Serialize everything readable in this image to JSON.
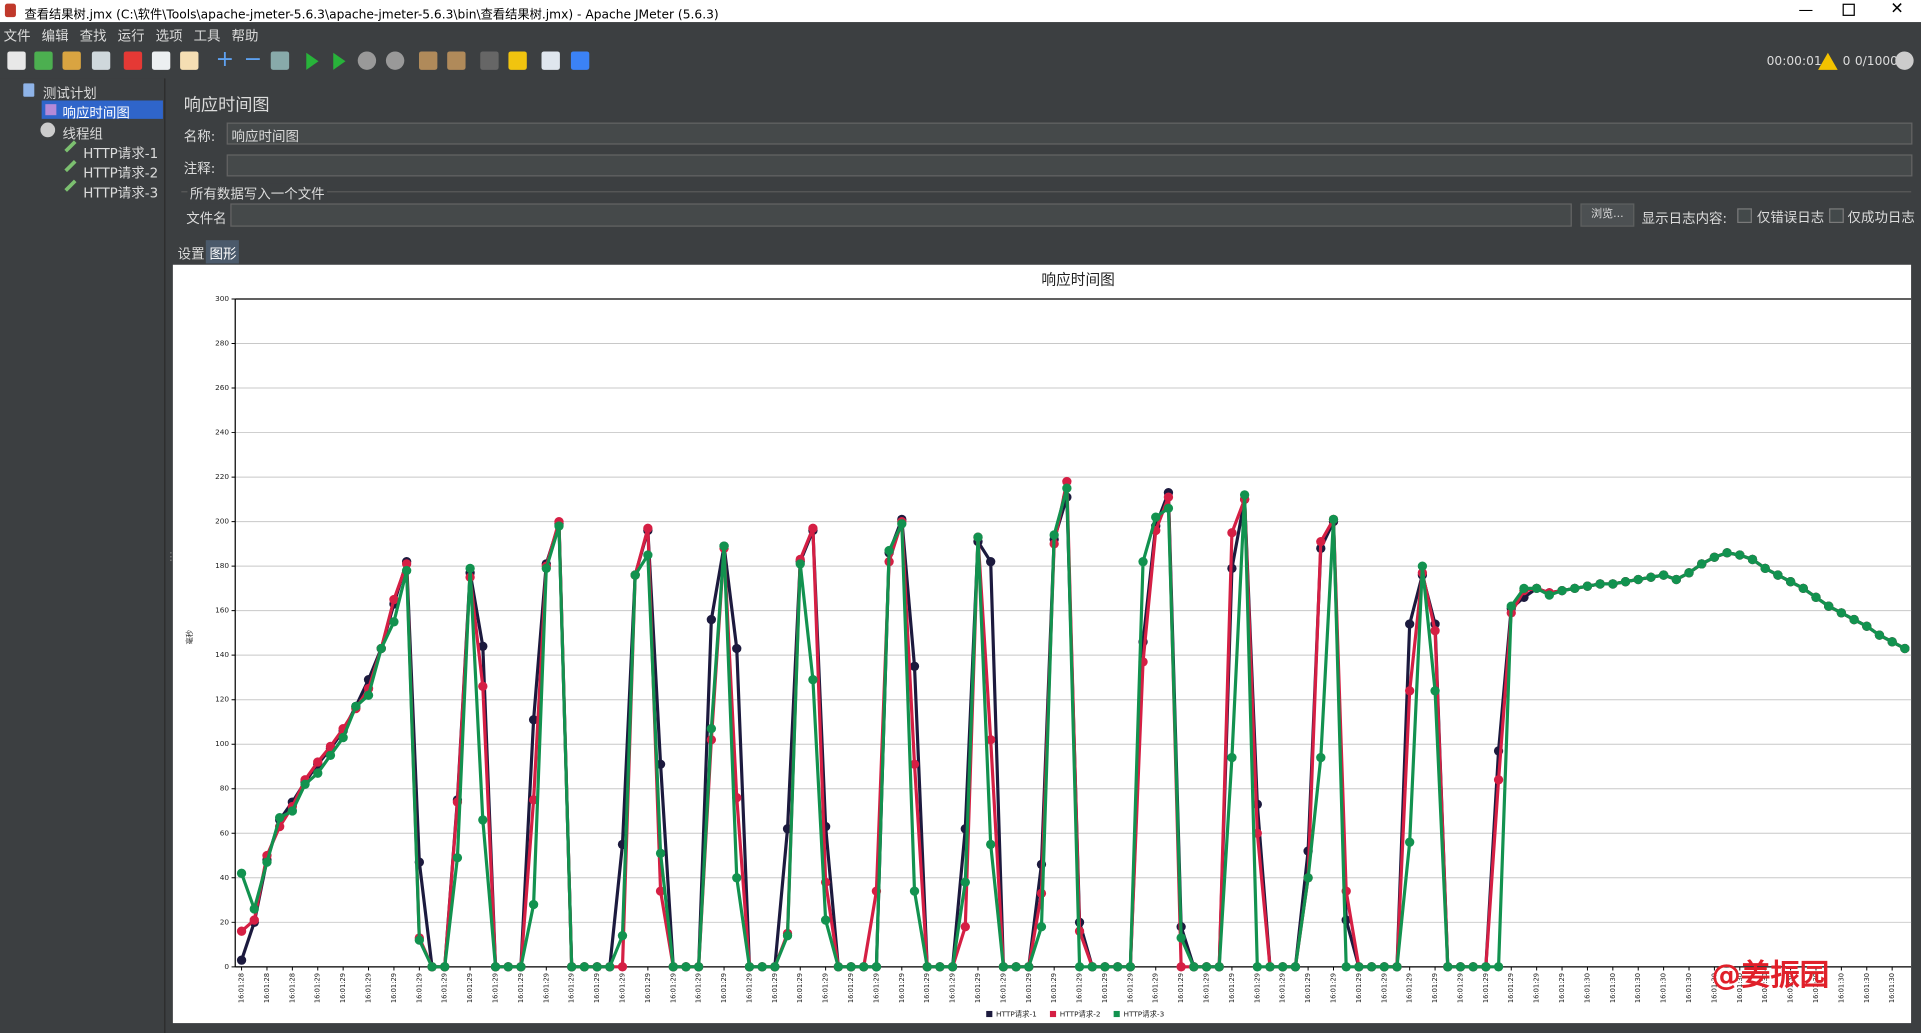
{
  "window": {
    "title": "查看结果树.jmx (C:\\软件\\Tools\\apache-jmeter-5.6.3\\apache-jmeter-5.6.3\\bin\\查看结果树.jmx) - Apache JMeter (5.6.3)",
    "menu": [
      "文件",
      "编辑",
      "查找",
      "运行",
      "选项",
      "工具",
      "帮助"
    ],
    "status": {
      "time": "00:00:01",
      "warnings": 0,
      "threads": "0/1000"
    }
  },
  "tree": {
    "items": [
      "测试计划",
      "响应时间图",
      "线程组",
      "HTTP请求-1",
      "HTTP请求-2",
      "HTTP请求-3"
    ]
  },
  "panel": {
    "title": "响应时间图",
    "name_label": "名称:",
    "name_value": "响应时间图",
    "comment_label": "注释:",
    "file_section": "所有数据写入一个文件",
    "file_label": "文件名",
    "browse": "浏览...",
    "log_label": "显示日志内容:",
    "errors_only": "仅错误日志",
    "success_only": "仅成功日志",
    "tabs": [
      "设置",
      "图形"
    ]
  },
  "chart_data": {
    "type": "line",
    "title": "响应时间图",
    "y_label": "毫秒",
    "categories": [
      "16:01:28",
      null,
      "16:01:28",
      null,
      "16:01:28",
      null,
      "16:01:29",
      null,
      "16:01:29",
      null,
      "16:01:29",
      null,
      "16:01:29",
      null,
      "16:01:29",
      null,
      "16:01:29",
      null,
      "16:01:29",
      null,
      "16:01:29",
      null,
      "16:01:29",
      null,
      "16:01:29",
      null,
      "16:01:29",
      null,
      "16:01:29",
      null,
      "16:01:29",
      null,
      "16:01:29",
      null,
      "16:01:29",
      null,
      "16:01:29",
      null,
      "16:01:29",
      null,
      "16:01:29",
      null,
      "16:01:29",
      null,
      "16:01:29",
      null,
      "16:01:29",
      null,
      "16:01:29",
      null,
      "16:01:29",
      null,
      "16:01:29",
      null,
      "16:01:29",
      null,
      "16:01:29",
      null,
      "16:01:29",
      null,
      "16:01:29",
      null,
      "16:01:29",
      null,
      "16:01:29",
      null,
      "16:01:29",
      null,
      "16:01:29",
      null,
      "16:01:29",
      null,
      "16:01:29",
      null,
      "16:01:29",
      null,
      "16:01:29",
      null,
      "16:01:29",
      null,
      "16:01:29",
      null,
      "16:01:29",
      null,
      "16:01:29",
      null,
      "16:01:29",
      null,
      "16:01:29",
      null,
      "16:01:29",
      null,
      "16:01:29",
      null,
      "16:01:29",
      null,
      "16:01:29",
      null,
      "16:01:29",
      null,
      "16:01:29",
      null,
      "16:01:29",
      null,
      "16:01:29",
      null,
      "16:01:30",
      null,
      "16:01:30",
      null,
      "16:01:30",
      null,
      "16:01:30",
      null,
      "16:01:30",
      null,
      "16:01:30",
      null,
      "16:01:30",
      null,
      "16:01:30",
      null,
      "16:01:30",
      null,
      "16:01:30",
      null,
      "16:01:30",
      null,
      "16:01:30",
      null,
      "16:01:30",
      null
    ],
    "series": [
      {
        "name": "HTTP请求-1",
        "color": "#1c1a3e",
        "values": [
          3,
          20,
          48,
          66,
          74,
          83,
          91,
          98,
          106,
          117,
          129,
          143,
          163,
          182,
          47,
          0,
          0,
          75,
          177,
          144,
          0,
          0,
          0,
          111,
          181,
          199,
          0,
          0,
          0,
          0,
          55,
          176,
          196,
          91,
          0,
          0,
          0,
          156,
          189,
          143,
          0,
          0,
          0,
          62,
          182,
          196,
          63,
          0,
          0,
          0,
          0,
          186,
          201,
          135,
          0,
          0,
          0,
          62,
          191,
          182,
          0,
          0,
          0,
          46,
          192,
          211,
          20,
          0,
          0,
          0,
          0,
          146,
          198,
          213,
          18,
          0,
          0,
          0,
          179,
          210,
          73,
          0,
          0,
          0,
          52,
          188,
          200,
          21,
          0,
          0,
          0,
          0,
          154,
          176,
          154,
          0,
          0,
          0,
          0,
          97,
          161,
          166,
          170,
          168,
          169,
          170,
          171,
          172,
          172,
          173,
          174,
          175,
          176,
          174,
          177,
          181,
          184,
          186,
          185,
          183,
          179,
          176,
          173,
          170,
          166,
          162,
          159,
          156,
          153,
          149,
          146,
          143
        ]
      },
      {
        "name": "HTTP请求-2",
        "color": "#d51f44",
        "values": [
          16,
          21,
          50,
          63,
          72,
          84,
          92,
          99,
          107,
          116,
          125,
          143,
          165,
          181,
          13,
          0,
          0,
          74,
          175,
          126,
          0,
          0,
          0,
          75,
          180,
          200,
          0,
          0,
          0,
          0,
          0,
          176,
          197,
          34,
          0,
          0,
          0,
          102,
          188,
          76,
          0,
          0,
          0,
          15,
          183,
          197,
          38,
          0,
          0,
          0,
          34,
          182,
          200,
          91,
          0,
          0,
          0,
          18,
          193,
          102,
          0,
          0,
          0,
          33,
          190,
          218,
          16,
          0,
          0,
          0,
          0,
          137,
          196,
          211,
          0,
          0,
          0,
          0,
          195,
          210,
          60,
          0,
          0,
          0,
          40,
          191,
          201,
          34,
          0,
          0,
          0,
          0,
          124,
          177,
          151,
          0,
          0,
          0,
          0,
          84,
          159,
          169,
          170,
          168,
          169,
          170,
          171,
          172,
          172,
          173,
          174,
          175,
          176,
          174,
          177,
          181,
          184,
          186,
          185,
          183,
          179,
          176,
          173,
          170,
          166,
          162,
          159,
          156,
          153,
          149,
          146,
          143
        ]
      },
      {
        "name": "HTTP请求-3",
        "color": "#12924f",
        "values": [
          42,
          26,
          47,
          67,
          70,
          82,
          87,
          95,
          103,
          117,
          122,
          143,
          155,
          178,
          12,
          0,
          0,
          49,
          179,
          66,
          0,
          0,
          0,
          28,
          179,
          198,
          0,
          0,
          0,
          0,
          14,
          176,
          185,
          51,
          0,
          0,
          0,
          107,
          189,
          40,
          0,
          0,
          0,
          14,
          181,
          129,
          21,
          0,
          0,
          0,
          0,
          187,
          199,
          34,
          0,
          0,
          0,
          38,
          193,
          55,
          0,
          0,
          0,
          18,
          194,
          215,
          0,
          0,
          0,
          0,
          0,
          182,
          202,
          206,
          13,
          0,
          0,
          0,
          94,
          212,
          0,
          0,
          0,
          0,
          40,
          94,
          201,
          0,
          0,
          0,
          0,
          0,
          56,
          180,
          124,
          0,
          0,
          0,
          0,
          0,
          162,
          170,
          170,
          167,
          169,
          170,
          171,
          172,
          172,
          173,
          174,
          175,
          176,
          174,
          177,
          181,
          184,
          186,
          185,
          183,
          179,
          176,
          173,
          170,
          166,
          162,
          159,
          156,
          153,
          149,
          146,
          143
        ]
      }
    ],
    "ylim": [
      0,
      300
    ],
    "yticks": [
      0,
      20,
      40,
      60,
      80,
      100,
      120,
      140,
      160,
      180,
      200,
      220,
      240,
      260,
      280,
      300
    ],
    "grid": true
  },
  "watermark": "@姜振园"
}
